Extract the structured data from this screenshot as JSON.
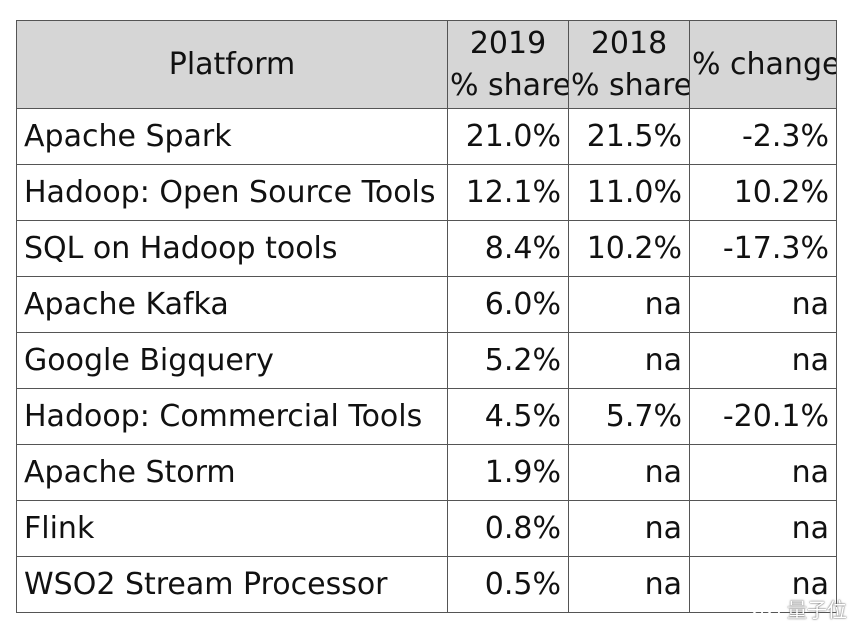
{
  "chart_data": {
    "type": "table",
    "columns": [
      {
        "key": "platform",
        "lines": [
          "Platform"
        ]
      },
      {
        "key": "share_2019",
        "lines": [
          "2019",
          "% share"
        ]
      },
      {
        "key": "share_2018",
        "lines": [
          "2018",
          "% share"
        ]
      },
      {
        "key": "pct_change",
        "lines": [
          "% change"
        ]
      }
    ],
    "rows": [
      {
        "platform": "Apache Spark",
        "share_2019": "21.0%",
        "share_2018": "21.5%",
        "pct_change": "-2.3%"
      },
      {
        "platform": "Hadoop: Open Source Tools",
        "share_2019": "12.1%",
        "share_2018": "11.0%",
        "pct_change": "10.2%"
      },
      {
        "platform": "SQL on Hadoop tools",
        "share_2019": "8.4%",
        "share_2018": "10.2%",
        "pct_change": "-17.3%"
      },
      {
        "platform": "Apache Kafka",
        "share_2019": "6.0%",
        "share_2018": "na",
        "pct_change": "na"
      },
      {
        "platform": "Google Bigquery",
        "share_2019": "5.2%",
        "share_2018": "na",
        "pct_change": "na"
      },
      {
        "platform": "Hadoop: Commercial Tools",
        "share_2019": "4.5%",
        "share_2018": "5.7%",
        "pct_change": "-20.1%"
      },
      {
        "platform": "Apache Storm",
        "share_2019": "1.9%",
        "share_2018": "na",
        "pct_change": "na"
      },
      {
        "platform": "Flink",
        "share_2019": "0.8%",
        "share_2018": "na",
        "pct_change": "na"
      },
      {
        "platform": "WSO2 Stream Processor",
        "share_2019": "0.5%",
        "share_2018": "na",
        "pct_change": "na"
      }
    ]
  },
  "watermark": {
    "text": "量子位",
    "icon": "wechat-icon"
  },
  "colors": {
    "header_bg": "#d6d6d6",
    "border": "#555555",
    "text": "#111111"
  }
}
